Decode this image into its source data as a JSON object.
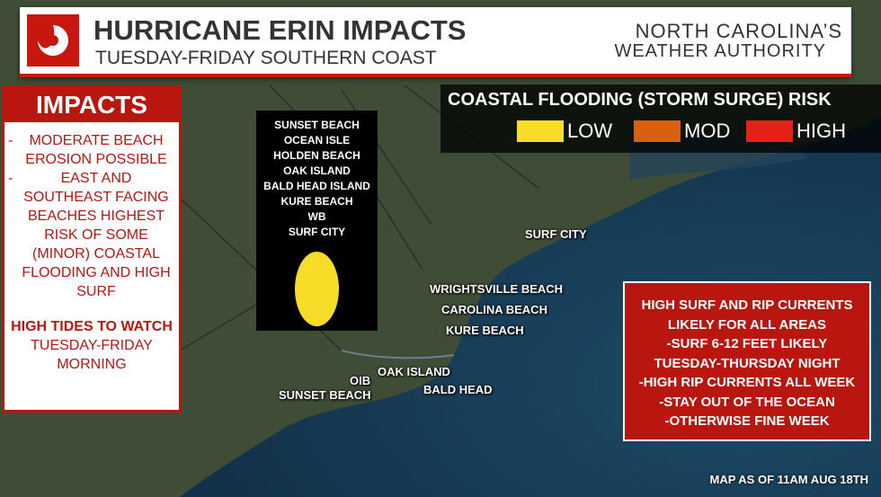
{
  "header": {
    "title": "HURRICANE ERIN IMPACTS",
    "subtitle": "TUESDAY-FRIDAY SOUTHERN COAST",
    "logo_line1": "NORTH CAROLINA’S",
    "logo_line2": "WEATHER AUTHORITY"
  },
  "impacts": {
    "title": "IMPACTS",
    "items": [
      "MODERATE BEACH EROSION POSSIBLE",
      "EAST AND SOUTHEAST FACING BEACHES HIGHEST RISK OF SOME (MINOR) COASTAL FLOODING AND HIGH SURF"
    ],
    "tides_title": "HIGH TIDES TO WATCH",
    "tides_time": "TUESDAY-FRIDAY MORNING"
  },
  "legend": {
    "title": "COASTAL FLOODING (STORM SURGE) RISK",
    "levels": [
      {
        "label": "LOW",
        "color": "#f7dd27"
      },
      {
        "label": "MOD",
        "color": "#d8600f"
      },
      {
        "label": "HIGH",
        "color": "#e5221a"
      }
    ]
  },
  "beach_list": [
    "SUNSET BEACH",
    "OCEAN ISLE",
    "HOLDEN BEACH",
    "OAK ISLAND",
    "BALD HEAD ISLAND",
    "KURE BEACH",
    "WB",
    "SURF CITY"
  ],
  "map_labels": [
    "SURF CITY",
    "WRIGHTSVILLE BEACH",
    "CAROLINA BEACH",
    "KURE BEACH",
    "OIB",
    "OAK ISLAND",
    "SUNSET BEACH",
    "BALD HEAD"
  ],
  "surf_box": [
    "HIGH SURF AND RIP CURRENTS",
    "LIKELY FOR ALL AREAS",
    "-SURF 6-12 FEET LIKELY",
    "TUESDAY-THURSDAY NIGHT",
    "-HIGH RIP CURRENTS ALL WEEK",
    "-STAY OUT OF THE OCEAN",
    "-OTHERWISE FINE WEEK"
  ],
  "footer": "MAP AS OF 11AM AUG 18TH"
}
